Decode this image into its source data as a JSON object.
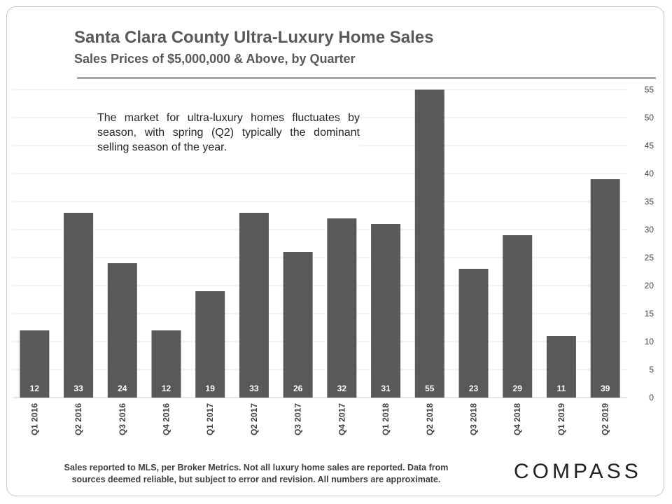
{
  "header": {
    "title": "Santa Clara County Ultra-Luxury Home Sales",
    "subtitle": "Sales Prices of $5,000,000 & Above, by Quarter"
  },
  "annotation": "The market for ultra-luxury homes fluctuates by season, with spring (Q2) typically the dominant selling season of the year.",
  "footer": {
    "line1": "Sales reported to MLS, per Broker Metrics. Not all luxury home sales are reported. Data from",
    "line2": "sources deemed reliable, but subject to error and revision. All numbers are approximate."
  },
  "logo": "COMPASS",
  "colors": {
    "bar": "#595959",
    "bar_label": "#ffffff",
    "grid": "#e6e6e6",
    "axis_text": "#404040"
  },
  "chart_data": {
    "type": "bar",
    "title": "Santa Clara County Ultra-Luxury Home Sales",
    "subtitle": "Sales Prices of $5,000,000 & Above, by Quarter",
    "categories": [
      "Q1 2016",
      "Q2 2016",
      "Q3 2016",
      "Q4 2016",
      "Q1 2017",
      "Q2 2017",
      "Q3 2017",
      "Q4 2017",
      "Q1 2018",
      "Q2 2018",
      "Q3 2018",
      "Q4 2018",
      "Q1 2019",
      "Q2 2019"
    ],
    "values": [
      12,
      33,
      24,
      12,
      19,
      33,
      26,
      32,
      31,
      55,
      23,
      29,
      11,
      39
    ],
    "ylim": [
      0,
      55
    ],
    "yticks": [
      0,
      5,
      10,
      15,
      20,
      25,
      30,
      35,
      40,
      45,
      50,
      55
    ],
    "yaxis_side": "right",
    "grid": true,
    "data_labels": "inside-bottom",
    "xlabel": "",
    "ylabel": ""
  }
}
